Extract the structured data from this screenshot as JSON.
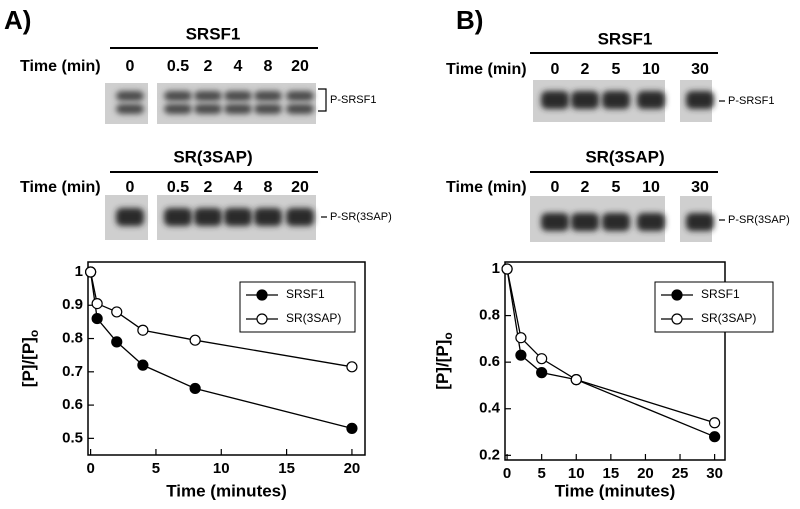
{
  "panels": [
    {
      "label": "A)",
      "gels": [
        {
          "title": "SRSF1",
          "time_label": "Time (min)",
          "times": [
            "0",
            "0.5",
            "2",
            "4",
            "8",
            "20"
          ],
          "band_label": "P-SRSF1"
        },
        {
          "title": "SR(3SAP)",
          "time_label": "Time (min)",
          "times": [
            "0",
            "0.5",
            "2",
            "4",
            "8",
            "20"
          ],
          "band_label": "P-SR(3SAP)"
        }
      ]
    },
    {
      "label": "B)",
      "gels": [
        {
          "title": "SRSF1",
          "time_label": "Time (min)",
          "times": [
            "0",
            "2",
            "5",
            "10",
            "30"
          ],
          "band_label": "P-SRSF1"
        },
        {
          "title": "SR(3SAP)",
          "time_label": "Time (min)",
          "times": [
            "0",
            "2",
            "5",
            "10",
            "30"
          ],
          "band_label": "P-SR(3SAP)"
        }
      ]
    }
  ],
  "chart_data": [
    {
      "type": "line",
      "xlabel": "Time (minutes)",
      "ylabel": "[P]/[P]",
      "ylabel_subscript": "o",
      "xlim": [
        -0.2,
        21
      ],
      "ylim": [
        0.45,
        1.03
      ],
      "xticks": [
        0,
        5,
        10,
        15,
        20
      ],
      "yticks": [
        0.5,
        0.6,
        0.7,
        0.8,
        0.9,
        1
      ],
      "legend": "upper right",
      "series": [
        {
          "name": "SRSF1",
          "color": "#000000",
          "marker_fill": "#000000",
          "x": [
            0,
            0.5,
            2,
            4,
            8,
            20
          ],
          "values": [
            1,
            0.86,
            0.79,
            0.72,
            0.65,
            0.53
          ]
        },
        {
          "name": "SR(3SAP)",
          "color": "#000000",
          "marker_fill": "#ffffff",
          "x": [
            0,
            0.5,
            2,
            4,
            8,
            20
          ],
          "values": [
            1,
            0.905,
            0.88,
            0.825,
            0.795,
            0.715
          ]
        }
      ]
    },
    {
      "type": "line",
      "xlabel": "Time (minutes)",
      "ylabel": "[P]/[P]",
      "ylabel_subscript": "o",
      "xlim": [
        -0.3,
        31.5
      ],
      "ylim": [
        0.18,
        1.03
      ],
      "xticks": [
        0,
        5,
        10,
        15,
        20,
        25,
        30
      ],
      "yticks": [
        0.2,
        0.4,
        0.6,
        0.8,
        1
      ],
      "legend": "upper right",
      "series": [
        {
          "name": "SRSF1",
          "color": "#000000",
          "marker_fill": "#000000",
          "x": [
            0,
            2,
            5,
            10,
            30
          ],
          "values": [
            1,
            0.63,
            0.555,
            0.525,
            0.28
          ]
        },
        {
          "name": "SR(3SAP)",
          "color": "#000000",
          "marker_fill": "#ffffff",
          "x": [
            0,
            2,
            5,
            10,
            30
          ],
          "values": [
            1,
            0.705,
            0.615,
            0.525,
            0.34
          ]
        }
      ]
    }
  ]
}
